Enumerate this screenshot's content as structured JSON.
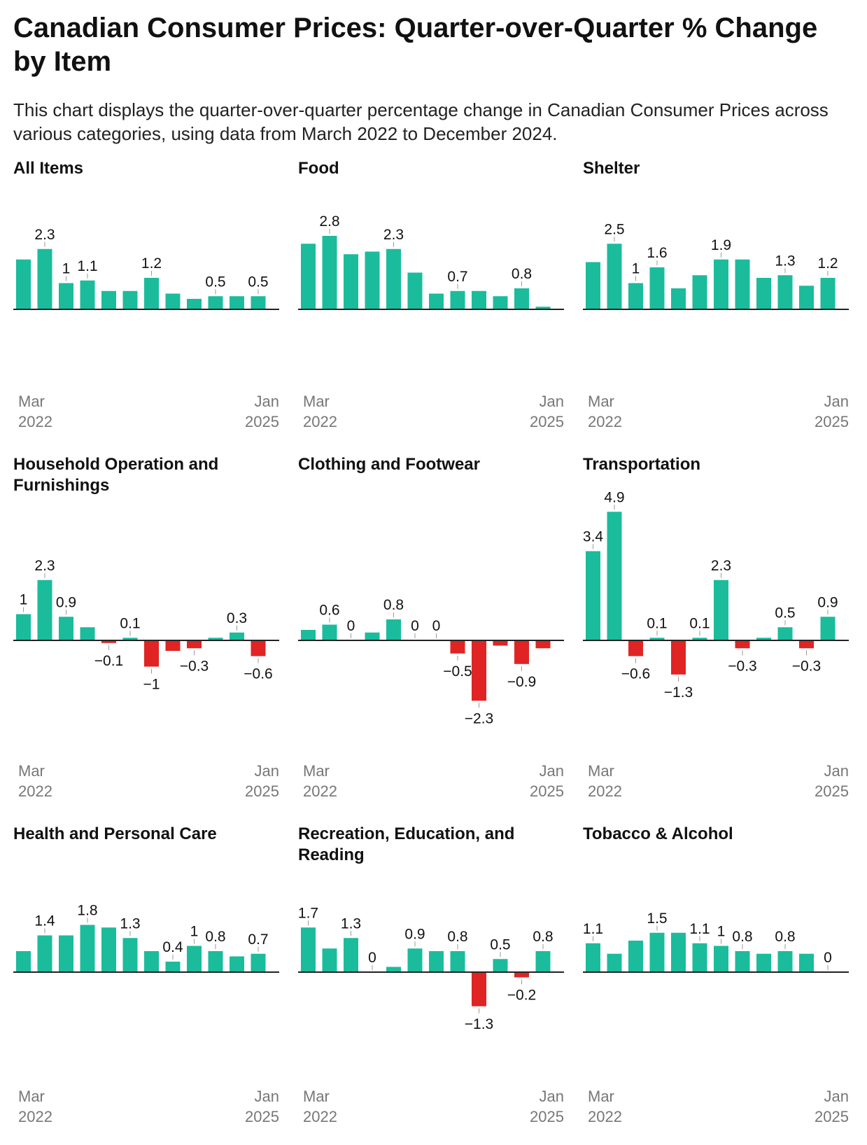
{
  "title": "Canadian Consumer Prices: Quarter-over-Quarter % Change by Item",
  "subtitle": "This chart displays the quarter-over-quarter percentage change in Canadian Consumer Prices across various categories, using data from March 2022 to December 2024.",
  "colors": {
    "positive": "#1abc9c",
    "negative": "#e02424",
    "baseline": "#222222",
    "label": "#111111",
    "tick": "#999999",
    "axis_text": "#777777"
  },
  "chart_data": [
    {
      "type": "bar",
      "title": "All Items",
      "x_start": [
        "Mar",
        "2022"
      ],
      "x_end": [
        "Jan",
        "2025"
      ],
      "values": [
        1.9,
        2.3,
        1.0,
        1.1,
        0.7,
        0.7,
        1.2,
        0.6,
        0.4,
        0.5,
        0.5,
        0.5
      ],
      "labels": [
        "",
        "2.3",
        "1",
        "1.1",
        "",
        "",
        "1.2",
        "",
        "",
        "0.5",
        "",
        "0.5"
      ]
    },
    {
      "type": "bar",
      "title": "Food",
      "x_start": [
        "Mar",
        "2022"
      ],
      "x_end": [
        "Jan",
        "2025"
      ],
      "values": [
        2.5,
        2.8,
        2.1,
        2.2,
        2.3,
        1.4,
        0.6,
        0.7,
        0.7,
        0.5,
        0.8,
        0.1
      ],
      "labels": [
        "",
        "2.8",
        "",
        "",
        "2.3",
        "",
        "",
        "0.7",
        "",
        "",
        "0.8",
        ""
      ]
    },
    {
      "type": "bar",
      "title": "Shelter",
      "x_start": [
        "Mar",
        "2022"
      ],
      "x_end": [
        "Jan",
        "2025"
      ],
      "values": [
        1.8,
        2.5,
        1.0,
        1.6,
        0.8,
        1.3,
        1.9,
        1.9,
        1.2,
        1.3,
        0.9,
        1.2
      ],
      "labels": [
        "",
        "2.5",
        "1",
        "1.6",
        "",
        "",
        "1.9",
        "",
        "",
        "1.3",
        "",
        "1.2"
      ]
    },
    {
      "type": "bar",
      "title": "Household Operation and Furnishings",
      "x_start": [
        "Mar",
        "2022"
      ],
      "x_end": [
        "Jan",
        "2025"
      ],
      "values": [
        1.0,
        2.3,
        0.9,
        0.5,
        -0.1,
        0.1,
        -1.0,
        -0.4,
        -0.3,
        0.1,
        0.3,
        -0.6
      ],
      "labels": [
        "1",
        "2.3",
        "0.9",
        "",
        "−0.1",
        "0.1",
        "−1",
        "",
        "−0.3",
        "",
        "0.3",
        "−0.6"
      ]
    },
    {
      "type": "bar",
      "title": "Clothing and Footwear",
      "x_start": [
        "Mar",
        "2022"
      ],
      "x_end": [
        "Jan",
        "2025"
      ],
      "values": [
        0.4,
        0.6,
        0,
        0.3,
        0.8,
        0,
        0,
        -0.5,
        -2.3,
        -0.2,
        -0.9,
        -0.3
      ],
      "labels": [
        "",
        "0.6",
        "0",
        "",
        "0.8",
        "0",
        "0",
        "−0.5",
        "−2.3",
        "",
        "−0.9",
        ""
      ]
    },
    {
      "type": "bar",
      "title": "Transportation",
      "x_start": [
        "Mar",
        "2022"
      ],
      "x_end": [
        "Jan",
        "2025"
      ],
      "values": [
        3.4,
        4.9,
        -0.6,
        0.1,
        -1.3,
        0.1,
        2.3,
        -0.3,
        0.1,
        0.5,
        -0.3,
        0.9
      ],
      "labels": [
        "3.4",
        "4.9",
        "−0.6",
        "0.1",
        "−1.3",
        "0.1",
        "2.3",
        "−0.3",
        "",
        "0.5",
        "−0.3",
        "0.9"
      ]
    },
    {
      "type": "bar",
      "title": "Health and Personal Care",
      "x_start": [
        "Mar",
        "2022"
      ],
      "x_end": [
        "Jan",
        "2025"
      ],
      "values": [
        0.8,
        1.4,
        1.4,
        1.8,
        1.7,
        1.3,
        0.8,
        0.4,
        1.0,
        0.8,
        0.6,
        0.7
      ],
      "labels": [
        "",
        "1.4",
        "",
        "1.8",
        "",
        "1.3",
        "",
        "0.4",
        "1",
        "0.8",
        "",
        "0.7"
      ]
    },
    {
      "type": "bar",
      "title": "Recreation, Education, and Reading",
      "x_start": [
        "Mar",
        "2022"
      ],
      "x_end": [
        "Jan",
        "2025"
      ],
      "values": [
        1.7,
        0.9,
        1.3,
        0,
        0.2,
        0.9,
        0.8,
        0.8,
        -1.3,
        0.5,
        -0.2,
        0.8
      ],
      "labels": [
        "1.7",
        "",
        "1.3",
        "0",
        "",
        "0.9",
        "",
        "0.8",
        "−1.3",
        "0.5",
        "−0.2",
        "0.8"
      ]
    },
    {
      "type": "bar",
      "title": "Tobacco & Alcohol",
      "x_start": [
        "Mar",
        "2022"
      ],
      "x_end": [
        "Jan",
        "2025"
      ],
      "values": [
        1.1,
        0.7,
        1.2,
        1.5,
        1.5,
        1.1,
        1.0,
        0.8,
        0.7,
        0.8,
        0.7,
        0
      ],
      "labels": [
        "1.1",
        "",
        "",
        "1.5",
        "",
        "1.1",
        "1",
        "0.8",
        "",
        "0.8",
        "",
        "0"
      ]
    }
  ]
}
